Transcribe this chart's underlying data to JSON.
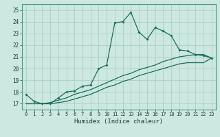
{
  "xlabel": "Humidex (Indice chaleur)",
  "bg_color": "#cce8e0",
  "grid_color": "#aacfc8",
  "line_color": "#1a6b5a",
  "xlim": [
    -0.5,
    23.5
  ],
  "ylim": [
    16.5,
    25.5
  ],
  "xticks": [
    0,
    1,
    2,
    3,
    4,
    5,
    6,
    7,
    8,
    9,
    10,
    11,
    12,
    13,
    14,
    15,
    16,
    17,
    18,
    19,
    20,
    21,
    22,
    23
  ],
  "yticks": [
    17,
    18,
    19,
    20,
    21,
    22,
    23,
    24,
    25
  ],
  "line1_x": [
    0,
    1,
    2,
    3,
    4,
    5,
    6,
    7,
    8,
    9,
    10,
    11,
    12,
    13,
    14,
    15,
    16,
    17,
    18,
    19,
    20,
    21,
    22,
    23
  ],
  "line1_y": [
    17.8,
    17.2,
    17.0,
    17.0,
    17.5,
    18.0,
    18.1,
    18.5,
    18.6,
    20.0,
    20.3,
    23.9,
    24.0,
    24.8,
    23.1,
    22.5,
    23.5,
    23.2,
    22.8,
    21.6,
    21.5,
    21.2,
    21.1,
    20.9
  ],
  "line2_x": [
    0,
    1,
    2,
    3,
    4,
    5,
    6,
    7,
    8,
    9,
    10,
    11,
    12,
    13,
    14,
    15,
    16,
    17,
    18,
    19,
    20,
    21,
    22,
    23
  ],
  "line2_y": [
    17.0,
    17.0,
    17.0,
    17.1,
    17.3,
    17.5,
    17.8,
    18.0,
    18.2,
    18.5,
    18.8,
    19.1,
    19.4,
    19.6,
    19.9,
    20.1,
    20.3,
    20.6,
    20.8,
    21.0,
    21.1,
    21.2,
    21.2,
    20.9
  ],
  "line3_x": [
    0,
    1,
    2,
    3,
    4,
    5,
    6,
    7,
    8,
    9,
    10,
    11,
    12,
    13,
    14,
    15,
    16,
    17,
    18,
    19,
    20,
    21,
    22,
    23
  ],
  "line3_y": [
    17.0,
    17.0,
    17.0,
    17.0,
    17.1,
    17.2,
    17.4,
    17.6,
    17.8,
    18.1,
    18.4,
    18.6,
    18.9,
    19.1,
    19.4,
    19.6,
    19.8,
    20.0,
    20.2,
    20.4,
    20.5,
    20.5,
    20.5,
    20.9
  ]
}
